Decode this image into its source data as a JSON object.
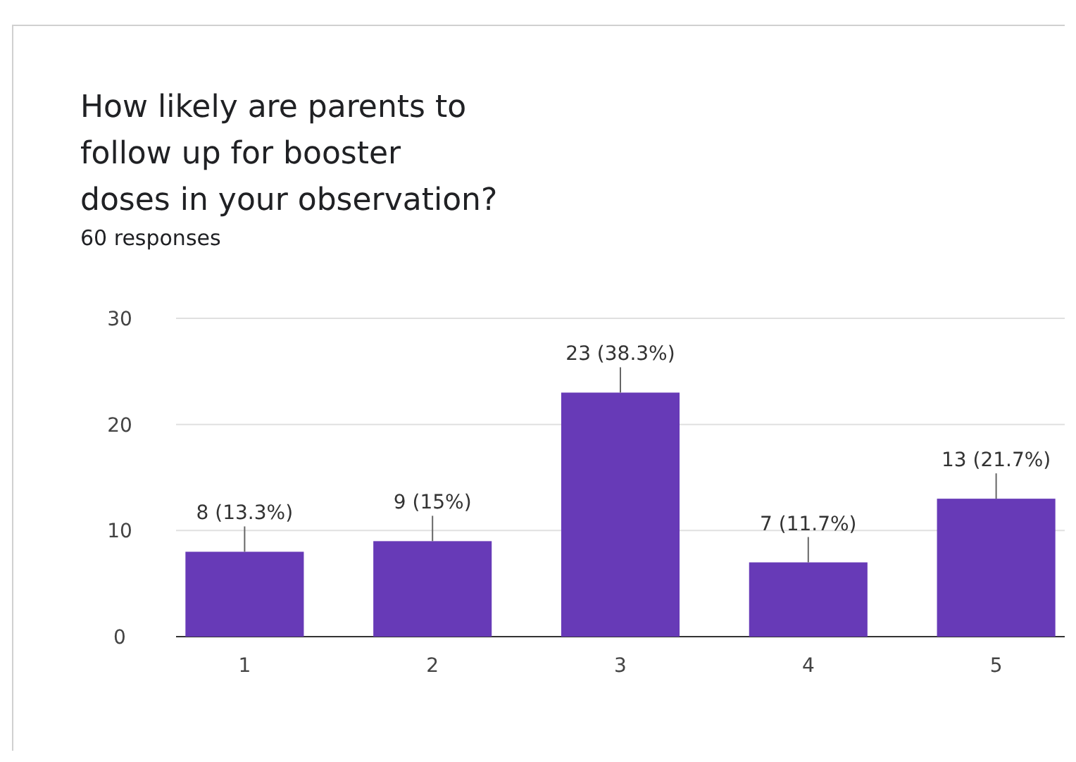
{
  "chart_data": {
    "type": "bar",
    "title": "How likely are parents to follow up for booster doses in your observation?",
    "subtitle": "60 responses",
    "categories": [
      "1",
      "2",
      "3",
      "4",
      "5"
    ],
    "values": [
      8,
      9,
      23,
      7,
      13
    ],
    "value_labels": [
      "8 (13.3%)",
      "9 (15%)",
      "23 (38.3%)",
      "7 (11.7%)",
      "13 (21.7%)"
    ],
    "color": "#673ab7",
    "ylim": [
      0,
      30
    ],
    "yticks": [
      0,
      10,
      20,
      30
    ],
    "grid": "y"
  }
}
